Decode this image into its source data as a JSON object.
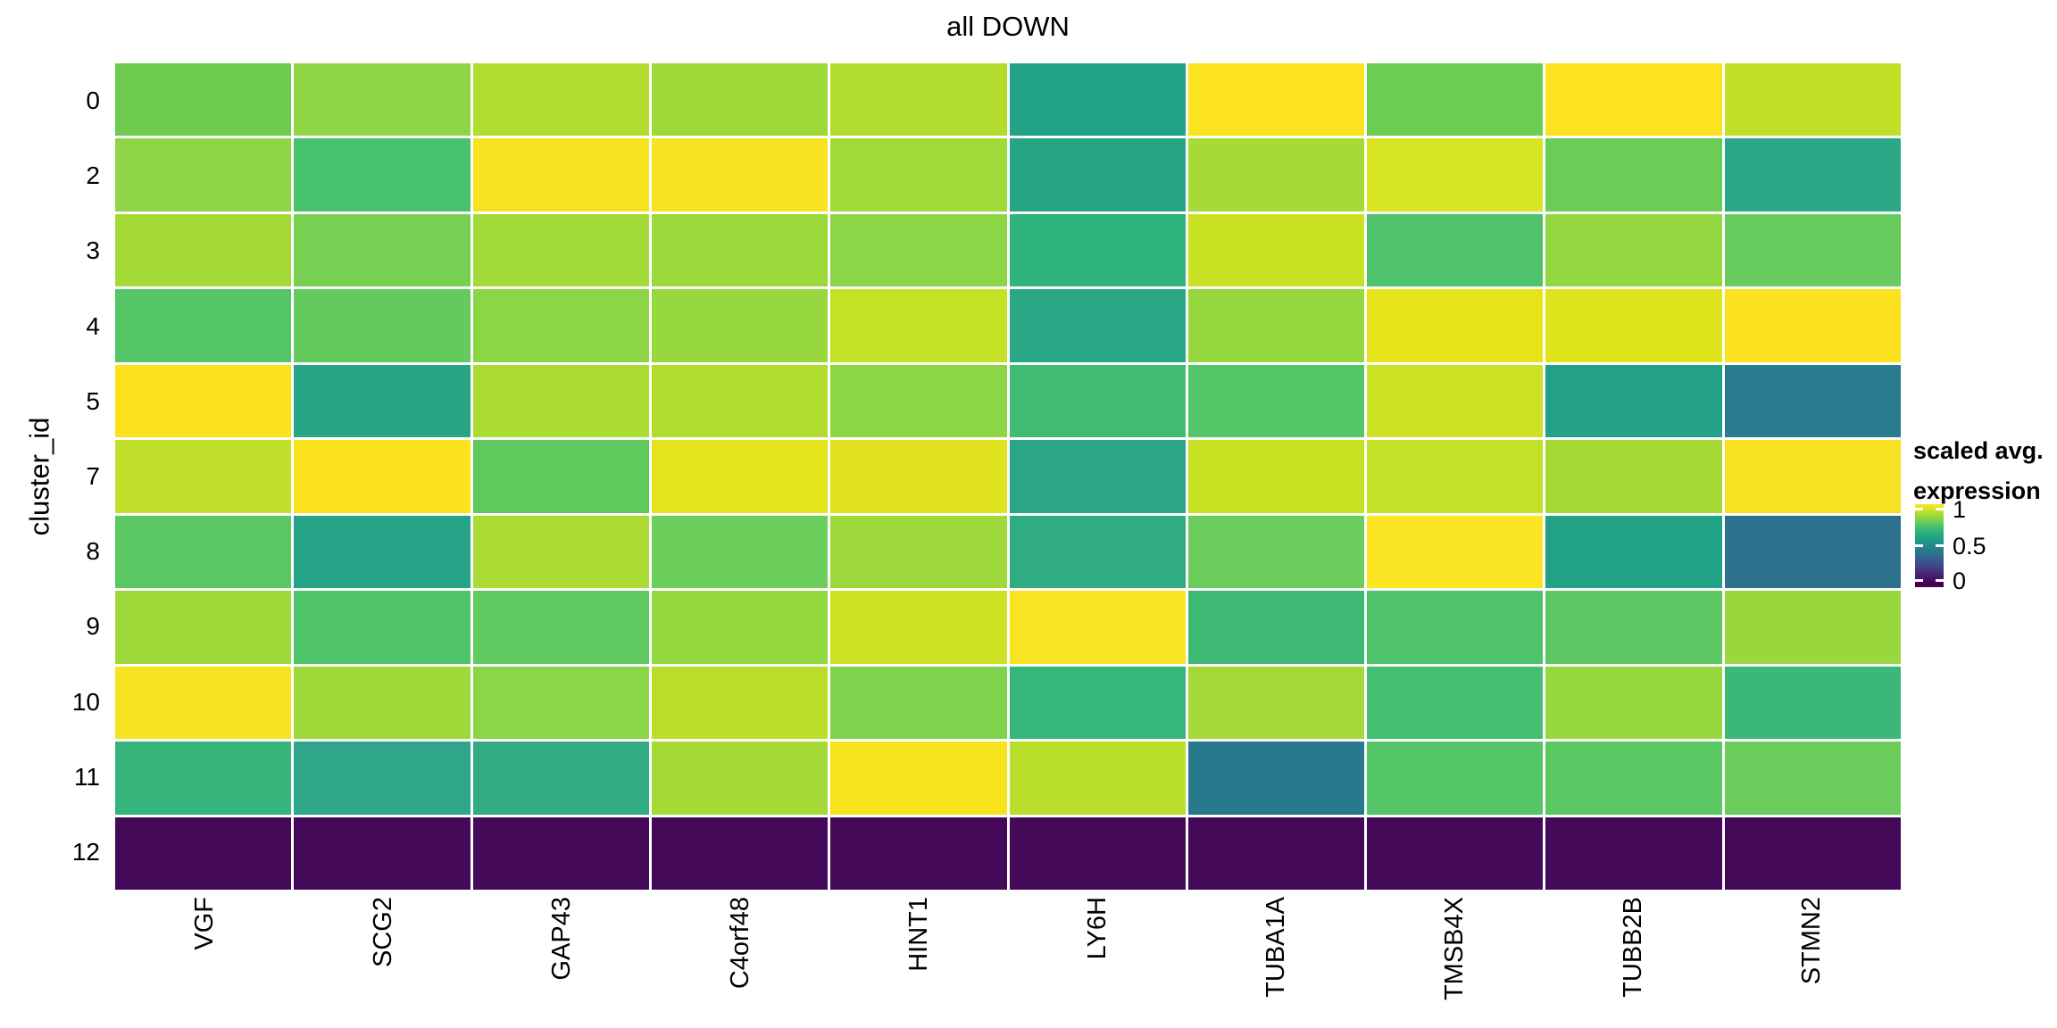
{
  "title": "all DOWN",
  "y_axis_label": "cluster_id",
  "legend": {
    "title_line1": "scaled avg.",
    "title_line2": "expression",
    "tick_labels": [
      "1",
      "0.5",
      "0"
    ],
    "tick_positions_pct": [
      6,
      50,
      92
    ]
  },
  "colors": {
    "background": "#ffffff",
    "grid": "#ffffff",
    "text": "#000000",
    "viridis_max": "#fde725",
    "viridis_mid": "#21918c",
    "viridis_min": "#440154"
  },
  "chart_data": {
    "type": "heatmap",
    "title": "all DOWN",
    "xlabel": "",
    "ylabel": "cluster_id",
    "legend_title": "scaled avg. expression",
    "colorscale": "viridis",
    "value_range": [
      0,
      1
    ],
    "x_categories": [
      "VGF",
      "SCG2",
      "GAP43",
      "C4orf48",
      "HINT1",
      "LY6H",
      "TUBA1A",
      "TMSB4X",
      "TUBB2B",
      "STMN2"
    ],
    "y_categories": [
      "0",
      "2",
      "3",
      "4",
      "5",
      "7",
      "8",
      "9",
      "10",
      "11",
      "12"
    ],
    "values": [
      [
        0.77,
        0.81,
        0.87,
        0.84,
        0.88,
        0.58,
        0.99,
        0.77,
        0.99,
        0.89
      ],
      [
        0.82,
        0.71,
        0.97,
        0.97,
        0.85,
        0.6,
        0.86,
        0.92,
        0.77,
        0.61
      ],
      [
        0.85,
        0.79,
        0.85,
        0.84,
        0.82,
        0.66,
        0.9,
        0.72,
        0.83,
        0.77
      ],
      [
        0.73,
        0.76,
        0.82,
        0.83,
        0.89,
        0.61,
        0.83,
        0.93,
        0.92,
        0.98
      ],
      [
        0.98,
        0.6,
        0.86,
        0.87,
        0.82,
        0.69,
        0.73,
        0.9,
        0.58,
        0.41
      ],
      [
        0.89,
        0.98,
        0.75,
        0.93,
        0.92,
        0.6,
        0.9,
        0.89,
        0.85,
        0.96
      ],
      [
        0.74,
        0.59,
        0.86,
        0.77,
        0.84,
        0.63,
        0.77,
        0.99,
        0.58,
        0.37
      ],
      [
        0.84,
        0.72,
        0.75,
        0.83,
        0.9,
        0.97,
        0.68,
        0.72,
        0.74,
        0.82
      ],
      [
        0.97,
        0.84,
        0.81,
        0.88,
        0.8,
        0.67,
        0.85,
        0.7,
        0.83,
        0.69
      ],
      [
        0.66,
        0.6,
        0.62,
        0.85,
        0.96,
        0.88,
        0.4,
        0.73,
        0.74,
        0.77
      ],
      [
        0.0,
        0.0,
        0.0,
        0.0,
        0.0,
        0.0,
        0.0,
        0.0,
        0.0,
        0.0
      ]
    ],
    "cell_colors": [
      [
        "#6ecb50",
        "#8fd646",
        "#b0dc30",
        "#9ed93a",
        "#b2dd2e",
        "#21a287",
        "#fce320",
        "#6ccd53",
        "#fce320",
        "#c0e128"
      ],
      [
        "#8ed645",
        "#48c16d",
        "#f8e321",
        "#f8e321",
        "#a0da38",
        "#26a585",
        "#a6db36",
        "#d6e421",
        "#6bcd56",
        "#2aa784"
      ],
      [
        "#a4da36",
        "#77d052",
        "#a2da37",
        "#9cd93b",
        "#8bd646",
        "#2fb47c",
        "#c8e122",
        "#4ec36c",
        "#93d741",
        "#67cb5e"
      ],
      [
        "#55c667",
        "#65ca5d",
        "#8cd646",
        "#97d83e",
        "#c4e126",
        "#2aa886",
        "#95d83f",
        "#e6e419",
        "#e0e41c",
        "#fbe21f"
      ],
      [
        "#fbe21d",
        "#26a685",
        "#aadc32",
        "#b2dd2f",
        "#8dd645",
        "#3fbc71",
        "#54c667",
        "#cde224",
        "#23a186",
        "#2b7b8e"
      ],
      [
        "#c0e02b",
        "#fbe21e",
        "#5fc95e",
        "#e5e41b",
        "#e0e31d",
        "#2aa585",
        "#c8e122",
        "#c3e128",
        "#a5da36",
        "#f6e223"
      ],
      [
        "#5bc863",
        "#25a386",
        "#a9db33",
        "#6bcd5a",
        "#9dd93a",
        "#2fac81",
        "#6bcd5b",
        "#fce522",
        "#21a287",
        "#2c728e"
      ],
      [
        "#9ed93a",
        "#50c46a",
        "#60c960",
        "#94d840",
        "#cee225",
        "#f8e324",
        "#3eb974",
        "#4ec36b",
        "#5dc863",
        "#98d83c"
      ],
      [
        "#f8e321",
        "#9ed93a",
        "#8ad647",
        "#bade28",
        "#7ed24e",
        "#35b779",
        "#a3da37",
        "#44bf70",
        "#97d83e",
        "#3bb877"
      ],
      [
        "#35b57c",
        "#2fa689",
        "#31ab82",
        "#a5da36",
        "#f6e31c",
        "#b8de29",
        "#28798e",
        "#55c667",
        "#5cc863",
        "#6ccc5b"
      ],
      [
        "#45095a",
        "#45095a",
        "#45095a",
        "#45095a",
        "#45095a",
        "#45095a",
        "#45095a",
        "#45095a",
        "#45095a",
        "#45095a"
      ]
    ]
  }
}
